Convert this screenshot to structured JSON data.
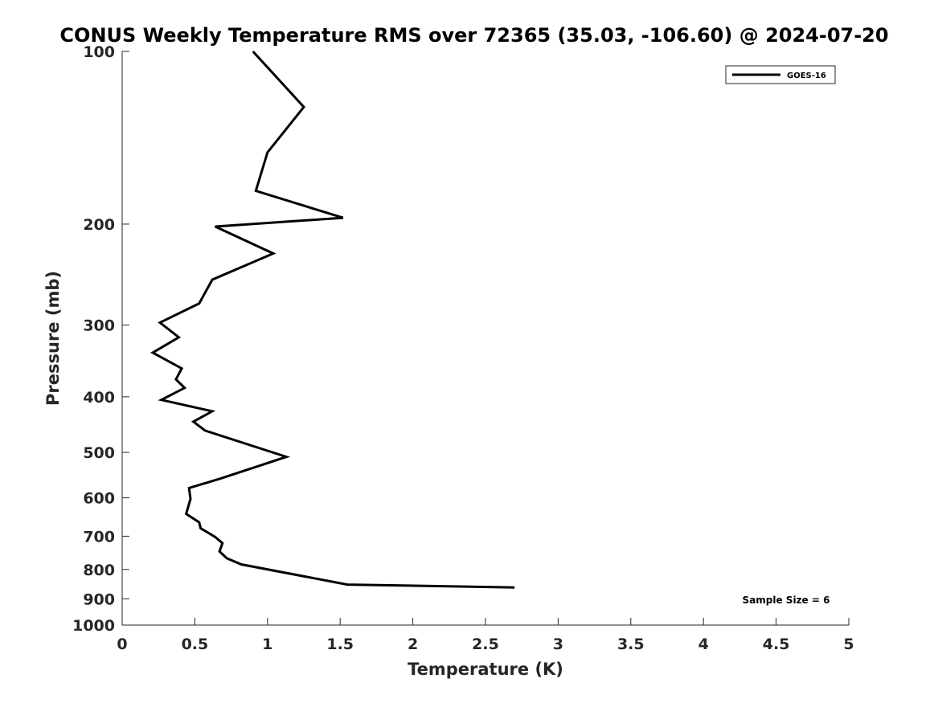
{
  "chart_data": {
    "type": "line",
    "title": "CONUS Weekly Temperature RMS over 72365 (35.03, -106.60) @ 2024-07-20",
    "xlabel": "Temperature (K)",
    "ylabel": "Pressure (mb)",
    "xlim": [
      0,
      5
    ],
    "ylim": [
      1000,
      100
    ],
    "yscale": "log",
    "y_reversed": true,
    "grid": false,
    "legend_position": "top-right",
    "x_ticks": [
      0,
      0.5,
      1,
      1.5,
      2,
      2.5,
      3,
      3.5,
      4,
      4.5,
      5
    ],
    "x_tick_labels": [
      "0",
      "0.5",
      "1",
      "1.5",
      "2",
      "2.5",
      "3",
      "3.5",
      "4",
      "4.5",
      "5"
    ],
    "y_ticks": [
      100,
      200,
      300,
      400,
      500,
      600,
      700,
      800,
      900,
      1000
    ],
    "y_tick_labels": [
      "100",
      "200",
      "300",
      "400",
      "500",
      "600",
      "700",
      "800",
      "900",
      "1000"
    ],
    "series": [
      {
        "name": "GOES-16",
        "color": "#000000",
        "points": [
          [
            0.9,
            100
          ],
          [
            1.25,
            125
          ],
          [
            1.0,
            150
          ],
          [
            0.92,
            175
          ],
          [
            1.52,
            195
          ],
          [
            0.64,
            202
          ],
          [
            1.04,
            225
          ],
          [
            0.62,
            250
          ],
          [
            0.53,
            275
          ],
          [
            0.26,
            297
          ],
          [
            0.39,
            315
          ],
          [
            0.21,
            335
          ],
          [
            0.41,
            357
          ],
          [
            0.37,
            373
          ],
          [
            0.43,
            386
          ],
          [
            0.27,
            405
          ],
          [
            0.62,
            424
          ],
          [
            0.49,
            442
          ],
          [
            0.57,
            458
          ],
          [
            1.13,
            509
          ],
          [
            0.98,
            524
          ],
          [
            0.68,
            555
          ],
          [
            0.46,
            577
          ],
          [
            0.47,
            603
          ],
          [
            0.44,
            640
          ],
          [
            0.53,
            662
          ],
          [
            0.54,
            678
          ],
          [
            0.64,
            702
          ],
          [
            0.69,
            720
          ],
          [
            0.67,
            744
          ],
          [
            0.72,
            765
          ],
          [
            0.82,
            784
          ],
          [
            1.55,
            850
          ],
          [
            2.7,
            860
          ]
        ]
      }
    ],
    "annotation": "Sample Size = 6"
  }
}
